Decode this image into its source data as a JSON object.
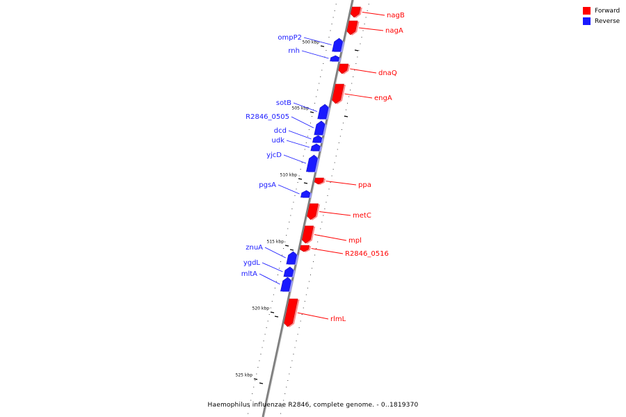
{
  "colors": {
    "forward": "#ff0000",
    "reverse": "#1a1aff",
    "axis": "#808080"
  },
  "legend": [
    {
      "label": "Forward",
      "color": "#ff0000"
    },
    {
      "label": "Reverse",
      "color": "#1a1aff"
    }
  ],
  "caption": "Haemophilus influenzae R2846, complete genome. - 0..1819370",
  "ticks": [
    "500 kbp",
    "505 kbp",
    "510 kbp",
    "515 kbp",
    "520 kbp",
    "525 kbp"
  ],
  "genes": [
    {
      "name": "nagB",
      "strand": "forward"
    },
    {
      "name": "nagA",
      "strand": "forward"
    },
    {
      "name": "ompP2",
      "strand": "reverse"
    },
    {
      "name": "rnh",
      "strand": "reverse"
    },
    {
      "name": "dnaQ",
      "strand": "forward"
    },
    {
      "name": "engA",
      "strand": "forward"
    },
    {
      "name": "sotB",
      "strand": "reverse"
    },
    {
      "name": "R2846_0505",
      "strand": "reverse"
    },
    {
      "name": "dcd",
      "strand": "reverse"
    },
    {
      "name": "udk",
      "strand": "reverse"
    },
    {
      "name": "yjcD",
      "strand": "reverse"
    },
    {
      "name": "ppa",
      "strand": "forward"
    },
    {
      "name": "pgsA",
      "strand": "reverse"
    },
    {
      "name": "metC",
      "strand": "forward"
    },
    {
      "name": "mpl",
      "strand": "forward"
    },
    {
      "name": "R2846_0516",
      "strand": "forward"
    },
    {
      "name": "znuA",
      "strand": "reverse"
    },
    {
      "name": "ygdL",
      "strand": "reverse"
    },
    {
      "name": "mltA",
      "strand": "reverse"
    },
    {
      "name": "rlmL",
      "strand": "forward"
    }
  ]
}
